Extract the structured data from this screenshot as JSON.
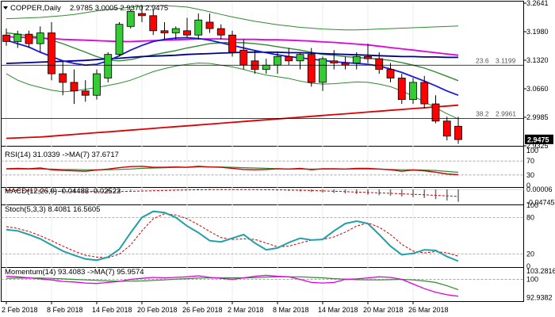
{
  "chart_data": {
    "type": "candlestick",
    "symbol_label": "COPPER,Daily",
    "ohlc_header": "2.9785 3.0005 2.9370 2.9475",
    "last_price": "2.9475",
    "x_labels": [
      "2 Feb 2018",
      "8 Feb 2018",
      "14 Feb 2018",
      "20 Feb 2018",
      "26 Feb 2018",
      "2 Mar 2018",
      "8 Mar 2018",
      "14 Mar 2018",
      "20 Mar 2018",
      "26 Mar 2018"
    ],
    "x_label_bars": [
      0,
      4,
      8,
      12,
      16,
      20,
      24,
      28,
      32,
      36
    ],
    "price_axis": {
      "range": [
        2.9325,
        3.2641
      ],
      "ticks": [
        "3.2641",
        "3.1980",
        "3.1320",
        "3.0660",
        "2.9985",
        "2.9325"
      ]
    },
    "fib_levels": [
      {
        "label": "23.6",
        "value": 3.1199,
        "text": "3.1199"
      },
      {
        "label": "38.2",
        "value": 2.9961,
        "text": "2.9961"
      }
    ],
    "candles": [
      [
        3.19,
        3.205,
        3.165,
        3.175
      ],
      [
        3.175,
        3.2,
        3.16,
        3.192
      ],
      [
        3.192,
        3.2,
        3.16,
        3.17
      ],
      [
        3.17,
        3.21,
        3.15,
        3.195
      ],
      [
        3.195,
        3.22,
        3.085,
        3.1
      ],
      [
        3.1,
        3.13,
        3.05,
        3.08
      ],
      [
        3.08,
        3.11,
        3.03,
        3.06
      ],
      [
        3.06,
        3.085,
        3.035,
        3.05
      ],
      [
        3.05,
        3.11,
        3.04,
        3.1
      ],
      [
        3.09,
        3.15,
        3.08,
        3.145
      ],
      [
        3.145,
        3.22,
        3.14,
        3.215
      ],
      [
        3.21,
        3.25,
        3.205,
        3.245
      ],
      [
        3.24,
        3.26,
        3.22,
        3.235
      ],
      [
        3.235,
        3.25,
        3.19,
        3.2
      ],
      [
        3.2,
        3.22,
        3.18,
        3.195
      ],
      [
        3.195,
        3.21,
        3.18,
        3.205
      ],
      [
        3.2,
        3.23,
        3.185,
        3.19
      ],
      [
        3.19,
        3.24,
        3.18,
        3.225
      ],
      [
        3.22,
        3.24,
        3.195,
        3.205
      ],
      [
        3.205,
        3.215,
        3.18,
        3.19
      ],
      [
        3.19,
        3.2,
        3.14,
        3.15
      ],
      [
        3.155,
        3.18,
        3.11,
        3.12
      ],
      [
        3.13,
        3.155,
        3.1,
        3.11
      ],
      [
        3.11,
        3.135,
        3.1,
        3.12
      ],
      [
        3.12,
        3.15,
        3.1,
        3.14
      ],
      [
        3.14,
        3.16,
        3.12,
        3.13
      ],
      [
        3.13,
        3.15,
        3.11,
        3.145
      ],
      [
        3.145,
        3.16,
        3.07,
        3.08
      ],
      [
        3.08,
        3.14,
        3.06,
        3.135
      ],
      [
        3.13,
        3.155,
        3.11,
        3.125
      ],
      [
        3.125,
        3.14,
        3.11,
        3.12
      ],
      [
        3.125,
        3.15,
        3.11,
        3.14
      ],
      [
        3.14,
        3.17,
        3.125,
        3.135
      ],
      [
        3.135,
        3.15,
        3.1,
        3.11
      ],
      [
        3.11,
        3.125,
        3.08,
        3.09
      ],
      [
        3.09,
        3.1,
        3.03,
        3.04
      ],
      [
        3.04,
        3.09,
        3.03,
        3.08
      ],
      [
        3.08,
        3.095,
        3.02,
        3.03
      ],
      [
        3.03,
        3.05,
        2.985,
        2.99
      ],
      [
        2.99,
        3.0,
        2.945,
        2.955
      ],
      [
        2.978,
        3.0,
        2.937,
        2.947
      ]
    ],
    "overlays": [
      {
        "name": "bb_upper",
        "color": "#2e8b2e",
        "values": [
          3.228,
          3.229,
          3.23,
          3.231,
          3.233,
          3.235,
          3.238,
          3.242,
          3.246,
          3.249,
          3.252,
          3.255,
          3.257,
          3.258,
          3.258,
          3.257,
          3.255,
          3.25,
          3.244,
          3.238,
          3.232,
          3.227,
          3.222,
          3.218,
          3.214,
          3.211,
          3.208,
          3.206,
          3.204,
          3.203,
          3.202,
          3.202,
          3.203,
          3.204,
          3.205,
          3.206,
          3.207,
          3.208,
          3.209,
          3.21,
          3.211
        ]
      },
      {
        "name": "bb_lower",
        "color": "#2e8b2e",
        "values": [
          3.1,
          3.085,
          3.075,
          3.068,
          3.062,
          3.058,
          3.06,
          3.064,
          3.068,
          3.073,
          3.078,
          3.085,
          3.095,
          3.105,
          3.112,
          3.118,
          3.122,
          3.125,
          3.124,
          3.12,
          3.116,
          3.11,
          3.103,
          3.097,
          3.093,
          3.089,
          3.083,
          3.078,
          3.076,
          3.077,
          3.079,
          3.081,
          3.08,
          3.076,
          3.07,
          3.06,
          3.048,
          3.035,
          3.021,
          3.007,
          2.995
        ]
      },
      {
        "name": "ema_fast",
        "color": "#2e8b2e",
        "values": [
          3.195,
          3.192,
          3.188,
          3.185,
          3.178,
          3.17,
          3.16,
          3.15,
          3.14,
          3.132,
          3.13,
          3.133,
          3.139,
          3.144,
          3.149,
          3.154,
          3.16,
          3.165,
          3.17,
          3.172,
          3.173,
          3.172,
          3.17,
          3.167,
          3.163,
          3.159,
          3.155,
          3.15,
          3.145,
          3.143,
          3.14,
          3.138,
          3.136,
          3.134,
          3.131,
          3.126,
          3.12,
          3.113,
          3.104,
          3.094,
          3.084
        ]
      },
      {
        "name": "ma_magenta",
        "color": "#e000e0",
        "values": [
          3.186,
          3.185,
          3.184,
          3.183,
          3.182,
          3.18,
          3.179,
          3.178,
          3.177,
          3.176,
          3.175,
          3.175,
          3.176,
          3.177,
          3.178,
          3.179,
          3.18,
          3.181,
          3.181,
          3.181,
          3.18,
          3.18,
          3.18,
          3.179,
          3.179,
          3.178,
          3.177,
          3.176,
          3.174,
          3.173,
          3.171,
          3.169,
          3.167,
          3.164,
          3.161,
          3.158,
          3.155,
          3.152,
          3.149,
          3.146,
          3.143
        ]
      },
      {
        "name": "ma_navy",
        "color": "#00008b",
        "values": [
          3.124,
          3.125,
          3.126,
          3.127,
          3.128,
          3.129,
          3.13,
          3.131,
          3.133,
          3.135,
          3.136,
          3.138,
          3.14,
          3.141,
          3.142,
          3.143,
          3.145,
          3.146,
          3.147,
          3.148,
          3.149,
          3.15,
          3.15,
          3.15,
          3.15,
          3.149,
          3.149,
          3.148,
          3.147,
          3.146,
          3.145,
          3.144,
          3.143,
          3.142,
          3.141,
          3.14,
          3.14,
          3.139,
          3.139,
          3.138,
          3.138
        ]
      },
      {
        "name": "ma_blue",
        "color": "#1a1adc",
        "values": [
          3.178,
          3.17,
          3.162,
          3.15,
          3.14,
          3.13,
          3.124,
          3.12,
          3.122,
          3.13,
          3.142,
          3.155,
          3.166,
          3.175,
          3.18,
          3.183,
          3.184,
          3.182,
          3.178,
          3.172,
          3.166,
          3.16,
          3.154,
          3.149,
          3.144,
          3.14,
          3.137,
          3.134,
          3.131,
          3.128,
          3.126,
          3.124,
          3.122,
          3.118,
          3.111,
          3.103,
          3.093,
          3.083,
          3.072,
          3.06,
          3.05
        ]
      },
      {
        "name": "ma_red",
        "color": "#dd0000",
        "values": [
          2.95,
          2.951,
          2.952,
          2.953,
          2.955,
          2.957,
          2.959,
          2.961,
          2.963,
          2.965,
          2.967,
          2.969,
          2.971,
          2.973,
          2.975,
          2.977,
          2.979,
          2.981,
          2.983,
          2.985,
          2.987,
          2.989,
          2.991,
          2.993,
          2.995,
          2.997,
          2.999,
          3.001,
          3.003,
          3.005,
          3.007,
          3.009,
          3.011,
          3.013,
          3.015,
          3.017,
          3.019,
          3.021,
          3.023,
          3.025,
          3.027
        ]
      }
    ],
    "rsi": {
      "label": "RSI(14) 31.0339  ->MA(7) 37.6717",
      "range": [
        0,
        100
      ],
      "levels": [
        70,
        30
      ],
      "ticks": [
        "100",
        "70",
        "30",
        "0"
      ],
      "rsi_values": [
        48,
        49,
        48,
        50,
        45,
        43,
        42,
        41,
        44,
        47,
        51,
        54,
        55,
        52,
        52,
        53,
        52,
        55,
        53,
        52,
        49,
        46,
        45,
        46,
        48,
        47,
        49,
        45,
        48,
        48,
        47,
        49,
        49,
        47,
        45,
        41,
        44,
        42,
        38,
        33,
        31
      ],
      "ma_values": [
        47,
        47,
        47,
        47,
        47,
        46,
        46,
        45,
        45,
        45,
        46,
        47,
        49,
        50,
        51,
        52,
        52,
        53,
        53,
        53,
        52,
        51,
        50,
        49,
        48,
        47,
        47,
        47,
        47,
        47,
        47,
        47,
        47,
        47,
        46,
        45,
        45,
        44,
        43,
        40,
        37.67
      ]
    },
    "macd": {
      "label": "MACD(12,26,9) -0.04483 -0.02523",
      "range": [
        -0.0515,
        0.003
      ],
      "ticks": [
        "0.00006",
        "-0.04745"
      ],
      "hist_values": [
        -0.006,
        -0.007,
        -0.008,
        -0.009,
        -0.0095,
        -0.01,
        -0.01,
        -0.01,
        -0.0095,
        -0.008,
        -0.006,
        -0.004,
        -0.002,
        -0.001,
        0.0,
        0.001,
        0.0015,
        0.002,
        0.002,
        0.0015,
        0.001,
        0.0,
        -0.001,
        -0.002,
        -0.0035,
        -0.005,
        -0.007,
        -0.009,
        -0.011,
        -0.013,
        -0.015,
        -0.017,
        -0.019,
        -0.021,
        -0.023,
        -0.0255,
        -0.028,
        -0.031,
        -0.035,
        -0.04,
        -0.04483
      ],
      "signal_values": [
        -0.0035,
        -0.004,
        -0.005,
        -0.006,
        -0.0068,
        -0.0075,
        -0.008,
        -0.0082,
        -0.0083,
        -0.008,
        -0.0075,
        -0.0068,
        -0.0058,
        -0.0048,
        -0.0038,
        -0.0028,
        -0.002,
        -0.0012,
        -0.0008,
        -0.0005,
        -0.0003,
        -0.0004,
        -0.0006,
        -0.001,
        -0.0015,
        -0.0022,
        -0.003,
        -0.004,
        -0.0052,
        -0.0065,
        -0.008,
        -0.0095,
        -0.011,
        -0.0125,
        -0.014,
        -0.0158,
        -0.0176,
        -0.0195,
        -0.0215,
        -0.0235,
        -0.02523
      ]
    },
    "stoch": {
      "label": "Stoch(5,3,3) 8.4081 16.5605",
      "range": [
        0,
        100
      ],
      "levels": [
        80,
        20
      ],
      "ticks": [
        "100",
        "80",
        "20",
        "0"
      ],
      "k_values": [
        60,
        58,
        52,
        45,
        35,
        25,
        18,
        12,
        10,
        15,
        28,
        55,
        80,
        90,
        88,
        80,
        66,
        55,
        42,
        40,
        46,
        52,
        38,
        27,
        30,
        39,
        46,
        43,
        44,
        58,
        70,
        74,
        70,
        52,
        33,
        19,
        21,
        27,
        26,
        16,
        8.41
      ],
      "d_values": [
        65,
        62,
        57,
        50,
        42,
        33,
        25,
        18,
        15,
        14,
        20,
        35,
        58,
        78,
        86,
        84,
        78,
        68,
        57,
        47,
        44,
        45,
        44,
        38,
        32,
        33,
        38,
        43,
        44,
        48,
        56,
        66,
        71,
        64,
        52,
        36,
        25,
        22,
        24,
        22,
        16.56
      ]
    },
    "momentum": {
      "label": "Momentum(14) 93.4083  ->MA(7) 95.9574",
      "range": [
        91.5,
        104.5
      ],
      "levels": [
        100
      ],
      "ticks": [
        "103.2816",
        "100",
        "92.9382"
      ],
      "mom_values": [
        101.2,
        101.0,
        100.6,
        100.2,
        99.8,
        99.2,
        99.0,
        98.6,
        98.4,
        98.8,
        99.2,
        100.0,
        100.4,
        100.8,
        100.6,
        100.8,
        101.0,
        101.4,
        100.8,
        100.4,
        100.0,
        100.6,
        101.2,
        101.6,
        101.2,
        101.0,
        100.0,
        98.8,
        98.6,
        98.8,
        100.0,
        100.2,
        100.6,
        101.0,
        100.8,
        100.0,
        98.2,
        96.4,
        95.0,
        94.0,
        93.41
      ],
      "ma_values": [
        100.4,
        100.5,
        100.5,
        100.5,
        100.4,
        100.2,
        100.0,
        99.8,
        99.6,
        99.4,
        99.3,
        99.3,
        99.4,
        99.6,
        99.8,
        100.1,
        100.3,
        100.5,
        100.6,
        100.6,
        100.6,
        100.6,
        100.7,
        100.9,
        101.0,
        101.0,
        101.0,
        100.8,
        100.6,
        100.3,
        100.1,
        99.9,
        99.8,
        99.8,
        99.9,
        100.0,
        99.8,
        99.4,
        98.8,
        97.5,
        95.96
      ]
    }
  }
}
